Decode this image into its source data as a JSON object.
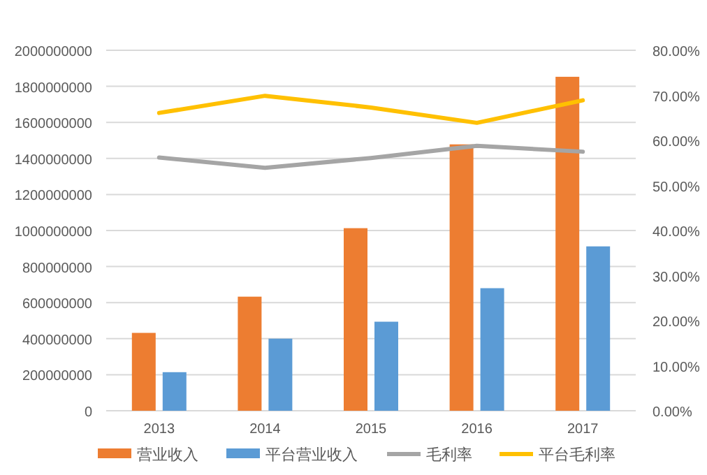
{
  "chart_data": {
    "type": "bar",
    "categories": [
      "2013",
      "2014",
      "2015",
      "2016",
      "2017"
    ],
    "series": [
      {
        "name": "营业收入",
        "color": "#ed7d31",
        "values": [
          432000000,
          633000000,
          1013000000,
          1478000000,
          1853000000
        ]
      },
      {
        "name": "平台营业收入",
        "color": "#5b9bd5",
        "values": [
          214000000,
          400000000,
          494000000,
          680000000,
          912000000
        ]
      },
      {
        "name": "毛利率",
        "type": "line",
        "axis": "y2",
        "color": "#a5a5a5",
        "values": [
          56.2,
          53.9,
          56.1,
          58.8,
          57.5
        ]
      },
      {
        "name": "平台毛利率",
        "type": "line",
        "axis": "y2",
        "color": "#ffc000",
        "values": [
          66.1,
          69.9,
          67.3,
          63.9,
          68.9
        ]
      }
    ],
    "ylim": [
      0,
      2000000000
    ],
    "yticks": [
      0,
      200000000,
      400000000,
      600000000,
      800000000,
      1000000000,
      1200000000,
      1400000000,
      1600000000,
      1800000000,
      2000000000
    ],
    "y2lim": [
      0,
      80
    ],
    "y2ticks": [
      {
        "value": 0,
        "label": "0.00%"
      },
      {
        "value": 10,
        "label": "10.00%"
      },
      {
        "value": 20,
        "label": "20.00%"
      },
      {
        "value": 30,
        "label": "30.00%"
      },
      {
        "value": 40,
        "label": "40.00%"
      },
      {
        "value": 50,
        "label": "50.00%"
      },
      {
        "value": 60,
        "label": "60.00%"
      },
      {
        "value": 70,
        "label": "70.00%"
      },
      {
        "value": 80,
        "label": "80.00%"
      }
    ],
    "grid": "y",
    "legend": "bottom",
    "marker": "none",
    "line_style": "solid"
  }
}
